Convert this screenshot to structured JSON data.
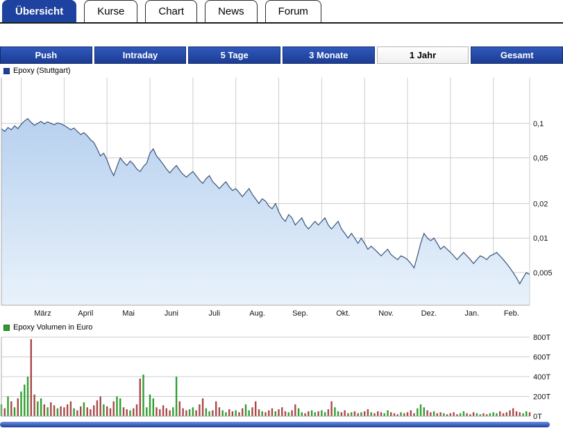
{
  "tabs": [
    {
      "label": "Übersicht",
      "active": true
    },
    {
      "label": "Kurse",
      "active": false
    },
    {
      "label": "Chart",
      "active": false
    },
    {
      "label": "News",
      "active": false
    },
    {
      "label": "Forum",
      "active": false
    }
  ],
  "range_buttons": [
    {
      "label": "Push",
      "active": false
    },
    {
      "label": "Intraday",
      "active": false
    },
    {
      "label": "5 Tage",
      "active": false
    },
    {
      "label": "3 Monate",
      "active": false
    },
    {
      "label": "1 Jahr",
      "active": true
    },
    {
      "label": "Gesamt",
      "active": false
    }
  ],
  "colors": {
    "accent_blue": "#1e429f",
    "price_line": "#395379",
    "area_top": "#b7d1ef",
    "area_bottom": "#e9f2fb",
    "volume_up_green": "#2f9e2f",
    "volume_down_red": "#a84848",
    "gridline": "#cccccc"
  },
  "chart_data": [
    {
      "type": "area",
      "title": "Epoxy (Stuttgart)",
      "selected_range": "1 Jahr",
      "x_axis": {
        "months": [
          "März",
          "April",
          "Mai",
          "Juni",
          "Juli",
          "Aug.",
          "Sep.",
          "Okt.",
          "Nov.",
          "Dez.",
          "Jan.",
          "Feb."
        ]
      },
      "month_starts": [
        6,
        19,
        32,
        45,
        58,
        71,
        84,
        97,
        110,
        123,
        136,
        149
      ],
      "y_axis": {
        "scale": "log",
        "range": [
          0.0026,
          0.25
        ],
        "ticks": [
          {
            "value": 0.1,
            "label": "0,1"
          },
          {
            "value": 0.05,
            "label": "0,05"
          },
          {
            "value": 0.02,
            "label": "0,02"
          },
          {
            "value": 0.01,
            "label": "0,01"
          },
          {
            "value": 0.005,
            "label": "0,005"
          }
        ]
      },
      "values": [
        0.09,
        0.085,
        0.092,
        0.088,
        0.095,
        0.09,
        0.098,
        0.105,
        0.11,
        0.102,
        0.096,
        0.1,
        0.104,
        0.099,
        0.103,
        0.1,
        0.097,
        0.101,
        0.099,
        0.096,
        0.092,
        0.088,
        0.091,
        0.085,
        0.08,
        0.083,
        0.078,
        0.072,
        0.068,
        0.06,
        0.052,
        0.055,
        0.048,
        0.04,
        0.035,
        0.042,
        0.05,
        0.046,
        0.043,
        0.047,
        0.044,
        0.04,
        0.038,
        0.042,
        0.045,
        0.055,
        0.06,
        0.052,
        0.048,
        0.044,
        0.04,
        0.037,
        0.04,
        0.043,
        0.039,
        0.036,
        0.034,
        0.036,
        0.038,
        0.035,
        0.032,
        0.03,
        0.033,
        0.035,
        0.031,
        0.029,
        0.027,
        0.029,
        0.031,
        0.028,
        0.026,
        0.027,
        0.025,
        0.023,
        0.025,
        0.027,
        0.024,
        0.022,
        0.02,
        0.022,
        0.021,
        0.019,
        0.018,
        0.02,
        0.017,
        0.015,
        0.014,
        0.016,
        0.015,
        0.013,
        0.014,
        0.015,
        0.013,
        0.012,
        0.013,
        0.014,
        0.013,
        0.014,
        0.015,
        0.013,
        0.012,
        0.013,
        0.014,
        0.012,
        0.011,
        0.01,
        0.011,
        0.01,
        0.009,
        0.01,
        0.009,
        0.008,
        0.0085,
        0.008,
        0.0075,
        0.007,
        0.0075,
        0.008,
        0.0072,
        0.0068,
        0.0065,
        0.007,
        0.0068,
        0.0065,
        0.006,
        0.0055,
        0.007,
        0.009,
        0.011,
        0.01,
        0.0095,
        0.01,
        0.009,
        0.008,
        0.0085,
        0.008,
        0.0075,
        0.007,
        0.0065,
        0.007,
        0.0075,
        0.007,
        0.0065,
        0.006,
        0.0065,
        0.007,
        0.0068,
        0.0065,
        0.007,
        0.0072,
        0.0075,
        0.007,
        0.0065,
        0.006,
        0.0055,
        0.005,
        0.0045,
        0.004,
        0.0045,
        0.005,
        0.0048
      ]
    },
    {
      "type": "bar",
      "title": "Epoxy Volumen in Euro",
      "values_unit": "thousand_euro",
      "y_axis": {
        "scale": "linear",
        "range": [
          0,
          800
        ],
        "ticks": [
          {
            "value": 800,
            "label": "800T"
          },
          {
            "value": 600,
            "label": "600T"
          },
          {
            "value": 400,
            "label": "400T"
          },
          {
            "value": 200,
            "label": "200T"
          },
          {
            "value": 0,
            "label": "0T"
          }
        ]
      },
      "bar_color_rule": "green if close >= previous close, red otherwise",
      "values": [
        120,
        80,
        200,
        150,
        90,
        180,
        250,
        320,
        400,
        780,
        220,
        150,
        180,
        120,
        90,
        140,
        110,
        80,
        100,
        90,
        120,
        150,
        80,
        60,
        100,
        140,
        90,
        70,
        110,
        160,
        200,
        120,
        100,
        80,
        150,
        200,
        180,
        90,
        70,
        60,
        80,
        120,
        380,
        420,
        90,
        220,
        180,
        90,
        70,
        110,
        80,
        60,
        90,
        400,
        150,
        80,
        60,
        70,
        90,
        60,
        120,
        180,
        80,
        50,
        60,
        150,
        90,
        60,
        40,
        70,
        50,
        60,
        40,
        80,
        120,
        60,
        90,
        150,
        70,
        50,
        40,
        60,
        80,
        50,
        70,
        90,
        50,
        40,
        60,
        120,
        80,
        40,
        30,
        50,
        60,
        40,
        50,
        60,
        40,
        70,
        150,
        90,
        50,
        40,
        60,
        30,
        40,
        50,
        30,
        40,
        50,
        70,
        40,
        30,
        50,
        40,
        30,
        60,
        40,
        30,
        20,
        40,
        30,
        40,
        60,
        30,
        80,
        120,
        90,
        60,
        40,
        50,
        30,
        40,
        30,
        20,
        30,
        40,
        20,
        30,
        50,
        30,
        20,
        40,
        30,
        20,
        30,
        20,
        30,
        40,
        30,
        50,
        30,
        40,
        60,
        80,
        50,
        40,
        30,
        50,
        40
      ]
    }
  ]
}
